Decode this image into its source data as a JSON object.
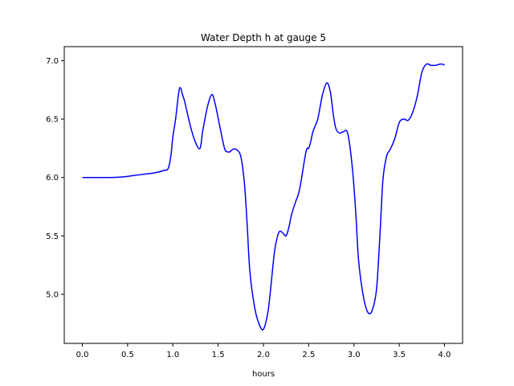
{
  "chart_data": {
    "type": "line",
    "title": "Water Depth h at gauge 5",
    "xlabel": "hours",
    "ylabel": "",
    "xlim": [
      -0.2,
      4.2
    ],
    "ylim": [
      4.58,
      7.12
    ],
    "xticks": [
      0.0,
      0.5,
      1.0,
      1.5,
      2.0,
      2.5,
      3.0,
      3.5,
      4.0
    ],
    "xtick_labels": [
      "0.0",
      "0.5",
      "1.0",
      "1.5",
      "2.0",
      "2.5",
      "3.0",
      "3.5",
      "4.0"
    ],
    "yticks": [
      5.0,
      5.5,
      6.0,
      6.5,
      7.0
    ],
    "ytick_labels": [
      "5.0",
      "5.5",
      "6.0",
      "6.5",
      "7.0"
    ],
    "grid": false,
    "legend": "none",
    "series": [
      {
        "color": "#0000ff",
        "x": [
          0.0,
          0.3,
          0.45,
          0.55,
          0.7,
          0.8,
          0.9,
          0.95,
          0.98,
          1.0,
          1.03,
          1.06,
          1.08,
          1.11,
          1.13,
          1.16,
          1.2,
          1.25,
          1.3,
          1.33,
          1.38,
          1.43,
          1.47,
          1.52,
          1.57,
          1.6,
          1.63,
          1.66,
          1.7,
          1.75,
          1.79,
          1.82,
          1.85,
          1.9,
          1.95,
          2.0,
          2.05,
          2.08,
          2.12,
          2.15,
          2.18,
          2.22,
          2.25,
          2.28,
          2.31,
          2.35,
          2.4,
          2.47,
          2.5,
          2.52,
          2.55,
          2.6,
          2.65,
          2.7,
          2.74,
          2.77,
          2.8,
          2.84,
          2.88,
          2.93,
          2.98,
          3.02,
          3.05,
          3.1,
          3.15,
          3.2,
          3.25,
          3.29,
          3.32,
          3.36,
          3.4,
          3.45,
          3.5,
          3.55,
          3.6,
          3.65,
          3.7,
          3.75,
          3.8,
          3.85,
          3.9,
          3.95,
          3.98,
          4.0
        ],
        "y": [
          6.0,
          6.0,
          6.005,
          6.015,
          6.03,
          6.04,
          6.06,
          6.08,
          6.2,
          6.35,
          6.5,
          6.7,
          6.77,
          6.7,
          6.65,
          6.55,
          6.42,
          6.3,
          6.25,
          6.4,
          6.6,
          6.71,
          6.62,
          6.43,
          6.25,
          6.22,
          6.22,
          6.24,
          6.24,
          6.18,
          5.95,
          5.6,
          5.2,
          4.9,
          4.75,
          4.7,
          4.85,
          5.05,
          5.35,
          5.48,
          5.54,
          5.52,
          5.5,
          5.57,
          5.68,
          5.78,
          5.9,
          6.22,
          6.25,
          6.3,
          6.4,
          6.5,
          6.7,
          6.81,
          6.73,
          6.55,
          6.42,
          6.38,
          6.39,
          6.38,
          6.1,
          5.7,
          5.3,
          5.0,
          4.85,
          4.86,
          5.05,
          5.55,
          5.98,
          6.18,
          6.24,
          6.33,
          6.47,
          6.5,
          6.49,
          6.56,
          6.7,
          6.9,
          6.97,
          6.96,
          6.96,
          6.97,
          6.97,
          6.96
        ]
      }
    ]
  }
}
